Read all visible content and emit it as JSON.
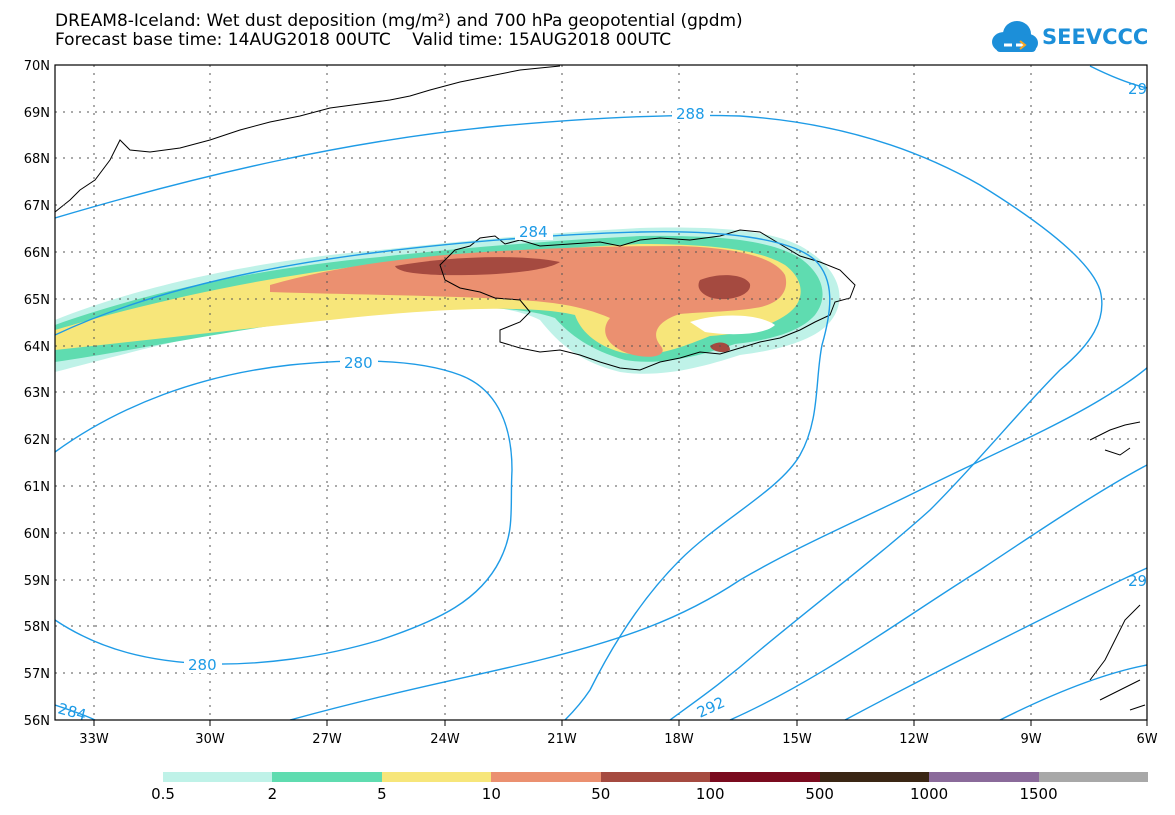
{
  "title_line1": "DREAM8-Iceland: Wet dust deposition (mg/m²) and 700 hPa geopotential (gpdm)",
  "title_line2": "Forecast base time: 14AUG2018 00UTC    Valid time: 15AUG2018 00UTC",
  "logo_text": "SEEVCCC",
  "lat_labels": [
    "70N",
    "69N",
    "68N",
    "67N",
    "66N",
    "65N",
    "64N",
    "63N",
    "62N",
    "61N",
    "60N",
    "59N",
    "58N",
    "57N",
    "56N"
  ],
  "lon_labels": [
    "33W",
    "30W",
    "27W",
    "24W",
    "21W",
    "18W",
    "15W",
    "12W",
    "9W",
    "6W"
  ],
  "contour_labels": [
    "288",
    "284",
    "280",
    "280",
    "284",
    "292",
    "29",
    "29"
  ],
  "legend": {
    "colors": [
      "#bff2e8",
      "#5fdcb0",
      "#f7e67a",
      "#eb9070",
      "#a54a40",
      "#7a0a1e",
      "#3a2614",
      "#8a6a9a",
      "#a8a8a8"
    ],
    "labels": [
      "0.5",
      "2",
      "5",
      "10",
      "50",
      "100",
      "500",
      "1000",
      "1500"
    ]
  },
  "colors": {
    "contour": "#1e9be6",
    "coast": "#000000"
  }
}
